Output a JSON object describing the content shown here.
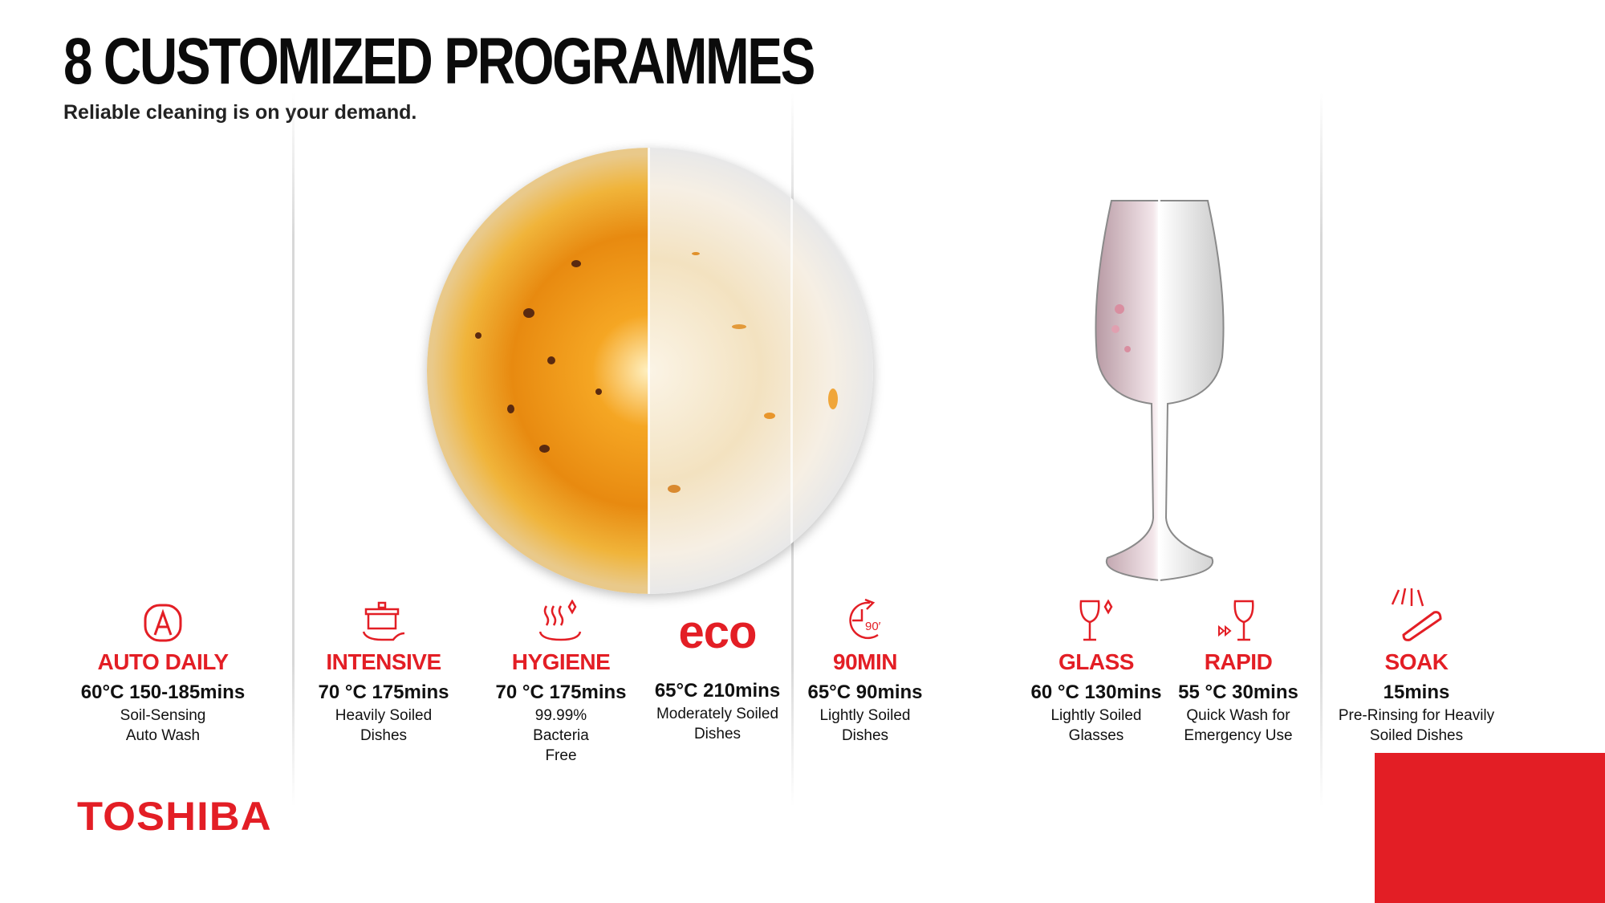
{
  "header": {
    "title": "8 CUSTOMIZED PROGRAMMES",
    "subtitle": "Reliable cleaning is on your demand."
  },
  "programmes": [
    {
      "icon": "auto-a-icon",
      "name": "AUTO DAILY",
      "spec": "60°C  150-185mins",
      "desc": [
        "Soil-Sensing",
        "Auto Wash"
      ]
    },
    {
      "icon": "pot-icon",
      "name": "INTENSIVE",
      "spec": "70 °C  175mins",
      "desc": [
        "Heavily Soiled",
        "Dishes"
      ]
    },
    {
      "icon": "steam-sparkle-icon",
      "name": "HYGIENE",
      "spec": "70 °C  175mins",
      "desc": [
        "99.99%",
        "Bacteria",
        "Free"
      ]
    },
    {
      "icon": "eco-icon",
      "icon_text": "eco",
      "name": "",
      "spec": "65°C  210mins",
      "desc": [
        "Moderately Soiled",
        "Dishes"
      ]
    },
    {
      "icon": "clock-90-icon",
      "icon_text": "90′",
      "name": "90MIN",
      "spec": "65°C  90mins",
      "desc": [
        "Lightly Soiled",
        "Dishes"
      ]
    },
    {
      "icon": "glass-sparkle-icon",
      "name": "GLASS",
      "spec": "60 °C  130mins",
      "desc": [
        "Lightly Soiled",
        "Glasses"
      ]
    },
    {
      "icon": "glass-fast-forward-icon",
      "name": "RAPID",
      "spec": "55 °C  30mins",
      "desc": [
        "Quick Wash for",
        "Emergency Use"
      ]
    },
    {
      "icon": "spray-pan-icon",
      "name": "SOAK",
      "spec": "15mins",
      "desc": [
        "Pre-Rinsing for Heavily",
        "Soiled Dishes"
      ]
    }
  ],
  "brand": {
    "logo": "TOSHIBA",
    "color": "#e31e25"
  }
}
